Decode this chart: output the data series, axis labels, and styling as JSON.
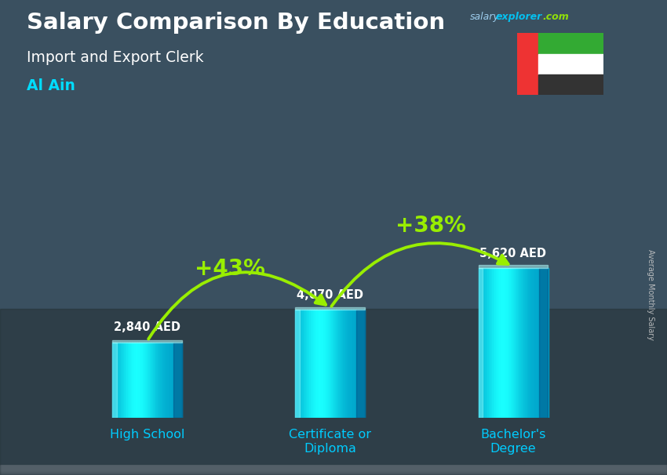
{
  "title_main": "Salary Comparison By Education",
  "title_sub": "Import and Export Clerk",
  "title_city": "Al Ain",
  "ylabel": "Average Monthly Salary",
  "categories": [
    "High School",
    "Certificate or\nDiploma",
    "Bachelor's\nDegree"
  ],
  "values": [
    2840,
    4070,
    5620
  ],
  "value_labels": [
    "2,840 AED",
    "4,070 AED",
    "5,620 AED"
  ],
  "pct_labels": [
    "+43%",
    "+38%"
  ],
  "bg_top": "#6a8aaa",
  "bg_bottom": "#3a5060",
  "bar_left": "#00aadd",
  "bar_mid": "#00ccff",
  "bar_right": "#007aaa",
  "bar_top_color": "#00ddff",
  "title_color": "#ffffff",
  "subtitle_color": "#ffffff",
  "city_color": "#00ddff",
  "value_label_color": "#ffffff",
  "pct_color": "#99ee00",
  "arrow_color": "#99ee00",
  "xlabel_color": "#00ccff",
  "watermark_salary": "salary",
  "watermark_explorer": "explorer",
  "watermark_com": ".com",
  "wm_salary_color": "#aaddff",
  "wm_explorer_color": "#00ccff",
  "wm_com_color": "#99ee00",
  "ylabel_color": "#cccccc",
  "flag_red": "#ee3333",
  "flag_green": "#33aa33",
  "flag_white": "#ffffff",
  "flag_black": "#333333"
}
